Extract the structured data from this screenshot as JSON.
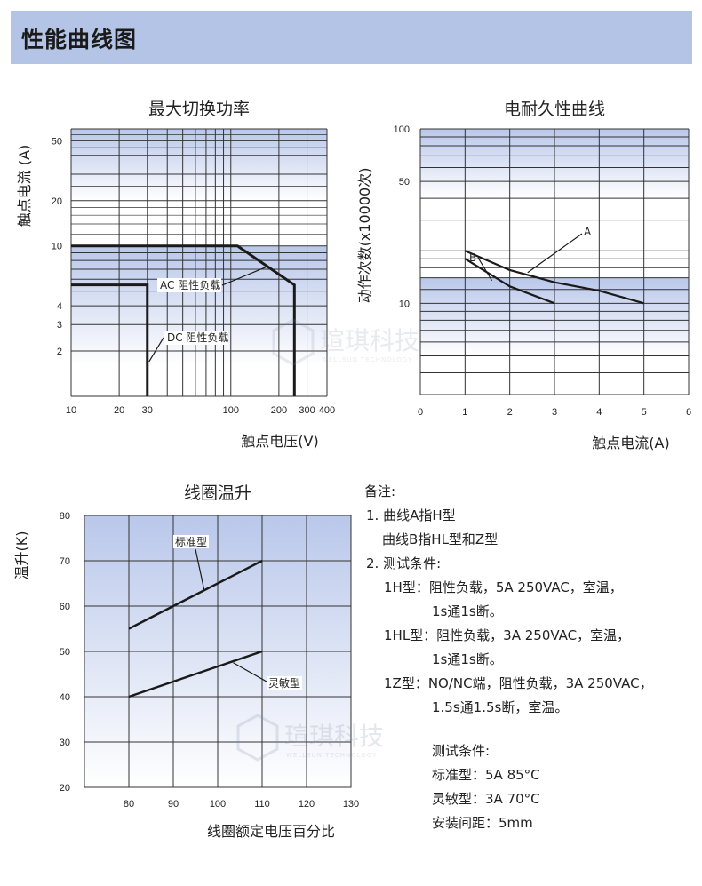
{
  "header": {
    "title": "性能曲线图"
  },
  "chart_data": [
    {
      "type": "line",
      "title": "最大切换功率",
      "xlabel": "触点电压(V)",
      "ylabel": "触点电流 (A)",
      "x_scale": "log",
      "y_scale": "log",
      "xlim": [
        10,
        400
      ],
      "ylim": [
        1,
        60
      ],
      "x_ticks": [
        10,
        20,
        30,
        100,
        200,
        300,
        400
      ],
      "y_ticks": [
        2,
        3,
        4,
        10,
        20,
        50
      ],
      "series": [
        {
          "name": "AC 阻性负载",
          "points": [
            [
              10,
              10
            ],
            [
              110,
              10
            ],
            [
              250,
              5.5
            ],
            [
              250,
              1
            ]
          ]
        },
        {
          "name": "DC 阻性负载",
          "points": [
            [
              10,
              5.5
            ],
            [
              30,
              5.5
            ],
            [
              30,
              1
            ]
          ]
        }
      ]
    },
    {
      "type": "line",
      "title": "电耐久性曲线",
      "xlabel": "触点电流(A)",
      "ylabel": "动作次数(x10000次)",
      "y_scale": "log",
      "xlim": [
        0,
        6
      ],
      "ylim": [
        3,
        100
      ],
      "x_ticks": [
        0,
        1,
        2,
        3,
        4,
        5,
        6
      ],
      "y_ticks": [
        10,
        50,
        100
      ],
      "series": [
        {
          "name": "A",
          "points": [
            [
              1,
              20
            ],
            [
              2,
              15.5
            ],
            [
              3,
              13.2
            ],
            [
              4,
              11.8
            ],
            [
              5,
              10
            ]
          ]
        },
        {
          "name": "B",
          "points": [
            [
              1,
              18
            ],
            [
              2,
              12.5
            ],
            [
              3,
              10
            ]
          ]
        }
      ]
    },
    {
      "type": "line",
      "title": "线圈温升",
      "xlabel": "线圈额定电压百分比",
      "ylabel": "温升(K)",
      "xlim": [
        70,
        130
      ],
      "ylim": [
        20,
        80
      ],
      "x_ticks": [
        80,
        90,
        100,
        110,
        120,
        130
      ],
      "y_ticks": [
        20,
        30,
        40,
        50,
        60,
        70,
        80
      ],
      "series": [
        {
          "name": "标准型",
          "points": [
            [
              80,
              55
            ],
            [
              110,
              70
            ]
          ]
        },
        {
          "name": "灵敏型",
          "points": [
            [
              80,
              40
            ],
            [
              110,
              50
            ]
          ]
        }
      ]
    }
  ],
  "notes": {
    "heading": "备注:",
    "lines": [
      "1. 曲线A指H型",
      "曲线B指HL型和Z型",
      "2. 测试条件:",
      "1H型：阻性负载，5A  250VAC，室温，",
      "1s通1s断。",
      "1HL型：阻性负载，3A  250VAC，室温，",
      "1s通1s断。",
      "1Z型：NO/NC端，阻性负载，3A  250VAC，",
      "1.5s通1.5s断，室温。",
      "测试条件:",
      "标准型：5A  85°C",
      "灵敏型：3A  70°C",
      "安装间距：5mm"
    ]
  },
  "watermark": {
    "name": "瑄琪科技",
    "sub": "WELLSUN TECHNOLOGY"
  },
  "colors": {
    "header_bg": "#b4c4e6",
    "band": "#b9c7ea",
    "grid": "#333333",
    "curve": "#1a1a1a"
  }
}
